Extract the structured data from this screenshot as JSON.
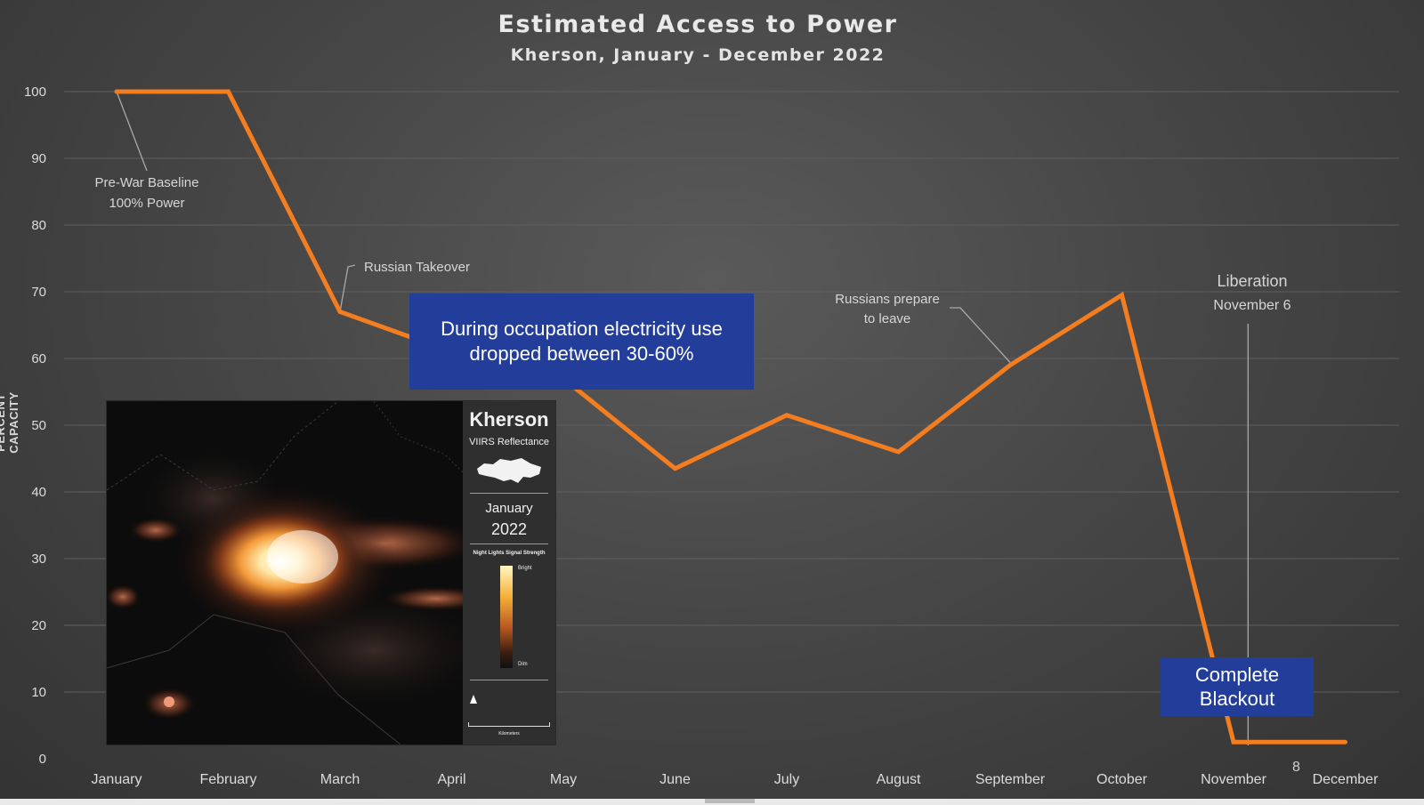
{
  "chart_data": {
    "type": "line",
    "title": "Estimated Access to Power",
    "subtitle": "Kherson, January - December 2022",
    "ylabel": "PERCENT CAPACITY",
    "xlabel": "",
    "categories": [
      "January",
      "February",
      "March",
      "April",
      "May",
      "June",
      "July",
      "August",
      "September",
      "October",
      "November",
      "December"
    ],
    "y_ticks": [
      "0",
      "10",
      "20",
      "30",
      "40",
      "50",
      "60",
      "70",
      "80",
      "90",
      "100"
    ],
    "ylim": [
      0,
      100
    ],
    "grid": "horizontal",
    "series": [
      {
        "color": "#f47d20",
        "points": [
          {
            "x": "January",
            "y": 100
          },
          {
            "x": "February",
            "y": 100
          },
          {
            "x": "March",
            "y": 67
          },
          {
            "x": "April",
            "y": 61
          },
          {
            "x": "May",
            "y": 57
          },
          {
            "x": "June",
            "y": 43.5
          },
          {
            "x": "July",
            "y": 51.5
          },
          {
            "x": "August",
            "y": 46
          },
          {
            "x": "September",
            "y": 59
          },
          {
            "x": "October",
            "y": 69.5
          },
          {
            "x": "November",
            "y": 2.5
          },
          {
            "x": "December",
            "y": 2.5
          }
        ]
      }
    ],
    "annotations": [
      {
        "id": "prewar",
        "lines": [
          "Pre-War Baseline",
          "100% Power"
        ],
        "anchor_x": "January",
        "anchor_y": 100
      },
      {
        "id": "takeover",
        "lines": [
          "Russian Takeover"
        ],
        "anchor_x": "March",
        "anchor_y": 67
      },
      {
        "id": "prepare",
        "lines": [
          "Russians prepare",
          "to leave"
        ],
        "anchor_x": "September",
        "anchor_y": 59
      },
      {
        "id": "liberation",
        "lines": [
          "Liberation",
          "November 6"
        ],
        "marker_x": "November",
        "marker_offset": 0.13
      }
    ]
  },
  "callouts": {
    "occupation": "During occupation electricity use dropped between 30-60%",
    "blackout": "Complete Blackout"
  },
  "inset": {
    "city": "Kherson",
    "subtitle": "VIIRS Reflectance",
    "month": "January",
    "year": "2022",
    "legend_title": "Night Lights Signal Strength",
    "legend_high": "Bright",
    "legend_low": "Dim",
    "scale_unit": "Kilometers"
  },
  "page_number": "8",
  "colors": {
    "line": "#f47d20",
    "callout": "#233d9b",
    "grid": "#5f5f5f",
    "text": "#dcdcdc"
  }
}
